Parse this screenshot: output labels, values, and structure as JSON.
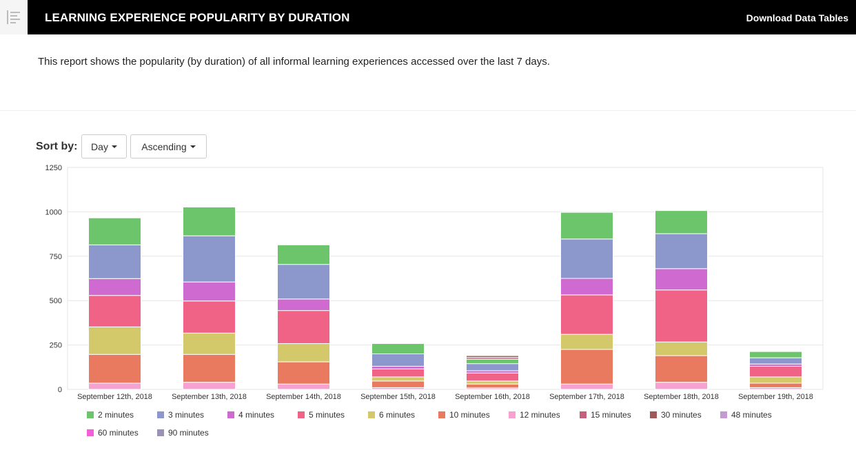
{
  "header": {
    "title": "LEARNING EXPERIENCE POPULARITY BY DURATION",
    "download_label": "Download Data Tables",
    "menu_icon": "menu-lines-icon"
  },
  "description": "This report shows the popularity (by duration) of all informal learning experiences accessed over the last 7 days.",
  "sort": {
    "label": "Sort by:",
    "day_value": "Day",
    "order_value": "Ascending"
  },
  "chart_data": {
    "type": "bar",
    "stacked": true,
    "ylim": [
      0,
      1250
    ],
    "yticks": [
      0,
      250,
      500,
      750,
      1000,
      1250
    ],
    "grid": true,
    "legend_position": "bottom",
    "categories": [
      "September 12th, 2018",
      "September 13th, 2018",
      "September 14th, 2018",
      "September 15th, 2018",
      "September 16th, 2018",
      "September 17th, 2018",
      "September 18th, 2018",
      "September 19th, 2018"
    ],
    "series": [
      {
        "name": "12 minutes",
        "color": "#f7a1d1",
        "values": [
          35,
          40,
          30,
          10,
          8,
          30,
          40,
          10
        ]
      },
      {
        "name": "10 minutes",
        "color": "#ea7a5f",
        "values": [
          162,
          157,
          125,
          37,
          22,
          195,
          150,
          25
        ]
      },
      {
        "name": "6 minutes",
        "color": "#d4c96a",
        "values": [
          155,
          120,
          103,
          23,
          17,
          85,
          77,
          35
        ]
      },
      {
        "name": "5 minutes",
        "color": "#f06387",
        "values": [
          177,
          181,
          186,
          45,
          45,
          222,
          293,
          60
        ]
      },
      {
        "name": "4 minutes",
        "color": "#cf6ad1",
        "values": [
          95,
          107,
          65,
          15,
          13,
          93,
          120,
          13
        ]
      },
      {
        "name": "3 minutes",
        "color": "#8c98cb",
        "values": [
          190,
          260,
          195,
          70,
          40,
          222,
          197,
          35
        ]
      },
      {
        "name": "2 minutes",
        "color": "#6cc56a",
        "values": [
          152,
          162,
          110,
          58,
          25,
          150,
          130,
          35
        ]
      },
      {
        "name": "15 minutes",
        "color": "#c45f7d",
        "values": [
          0,
          0,
          0,
          0,
          10,
          0,
          0,
          0
        ]
      },
      {
        "name": "30 minutes",
        "color": "#9e5a5a",
        "values": [
          0,
          0,
          0,
          0,
          10,
          0,
          0,
          0
        ]
      },
      {
        "name": "48 minutes",
        "color": "#c49ad3",
        "values": [
          0,
          0,
          0,
          0,
          0,
          0,
          0,
          0
        ]
      },
      {
        "name": "60 minutes",
        "color": "#f25fd6",
        "values": [
          0,
          0,
          0,
          0,
          0,
          0,
          0,
          0
        ]
      },
      {
        "name": "90 minutes",
        "color": "#9b93b6",
        "values": [
          0,
          0,
          0,
          0,
          0,
          0,
          0,
          0
        ]
      }
    ],
    "legend_order": [
      "2 minutes",
      "3 minutes",
      "4 minutes",
      "5 minutes",
      "6 minutes",
      "10 minutes",
      "12 minutes",
      "15 minutes",
      "30 minutes",
      "48 minutes",
      "60 minutes",
      "90 minutes"
    ]
  }
}
